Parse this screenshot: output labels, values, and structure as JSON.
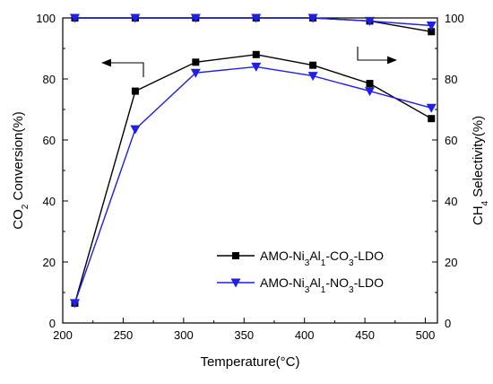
{
  "chart_data": {
    "type": "line",
    "title": "",
    "xlabel": {
      "main": "Temperature(",
      "unit": "°C",
      "close": ")"
    },
    "ylabel_left": {
      "a": "CO",
      "sub": "2",
      "b": " Conversion(%)"
    },
    "ylabel_right": {
      "a": "CH",
      "sub": "4",
      "b": " Selectivity(%)"
    },
    "xlim": [
      200,
      510
    ],
    "ylim_left": [
      0,
      100
    ],
    "ylim_right": [
      0,
      100
    ],
    "xticks": [
      200,
      250,
      300,
      350,
      400,
      450,
      500
    ],
    "yticks_left": [
      0,
      20,
      40,
      60,
      80,
      100
    ],
    "yticks_right": [
      0,
      20,
      40,
      60,
      80,
      100
    ],
    "x": [
      210,
      260,
      310,
      360,
      407,
      454,
      505
    ],
    "series": [
      {
        "name": "AMO-Ni3Al1-CO3-LDO",
        "legend": [
          {
            "t": "AMO-Ni"
          },
          {
            "t": "3",
            "sub": true
          },
          {
            "t": "Al"
          },
          {
            "t": "1",
            "sub": true
          },
          {
            "t": "-CO"
          },
          {
            "t": "3",
            "sub": true
          },
          {
            "t": "-LDO"
          }
        ],
        "color": "#000000",
        "marker": "square",
        "conversion": [
          6.5,
          76,
          85.5,
          88,
          84.5,
          78.5,
          67
        ],
        "selectivity": [
          100,
          100,
          100,
          100,
          100,
          99,
          95.5
        ]
      },
      {
        "name": "AMO-Ni3Al1-NO3-LDO",
        "legend": [
          {
            "t": "AMO-Ni"
          },
          {
            "t": "3",
            "sub": true
          },
          {
            "t": "Al"
          },
          {
            "t": "1",
            "sub": true
          },
          {
            "t": "-NO"
          },
          {
            "t": "3",
            "sub": true
          },
          {
            "t": "-LDO"
          }
        ],
        "color": "#1f1fe6",
        "marker": "triangle-down",
        "conversion": [
          6.5,
          63.5,
          82,
          84,
          81,
          76,
          70.5
        ],
        "selectivity": [
          100,
          100,
          100,
          100,
          100,
          99,
          97.5
        ]
      }
    ],
    "annotations": [
      {
        "kind": "arrow-left",
        "meaning": "curves belong to left axis"
      },
      {
        "kind": "arrow-right",
        "meaning": "curves belong to right axis"
      }
    ],
    "grid": false,
    "legend_position": "lower-right"
  }
}
